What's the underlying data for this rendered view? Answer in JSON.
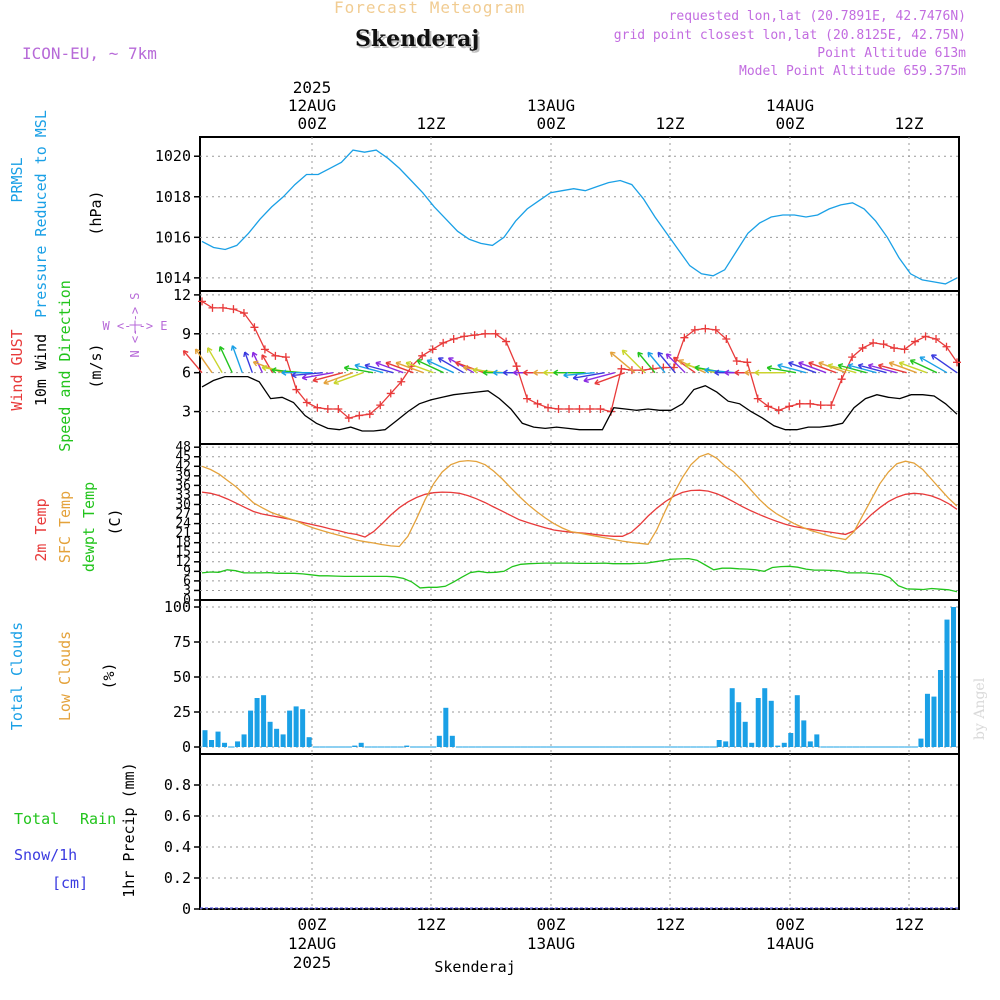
{
  "header": {
    "title": "Forecast Meteogram",
    "location": "Skenderaj",
    "model": "ICON-EU, ~ 7km",
    "requested": "requested lon,lat (20.7891E, 42.7476N)",
    "grid_point": "grid point closest lon,lat (20.8125E, 42.75N)",
    "point_altitude": "Point Altitude 613m",
    "model_altitude": "Model Point Altitude 659.375m",
    "credit": "by Angel"
  },
  "footer": {
    "location": "Skenderaj"
  },
  "time_axis": {
    "top_labels": [
      {
        "lines": [
          "2025",
          "12AUG",
          "00Z"
        ]
      },
      {
        "lines": [
          "12Z"
        ]
      },
      {
        "lines": [
          "13AUG",
          "00Z"
        ]
      },
      {
        "lines": [
          "12Z"
        ]
      },
      {
        "lines": [
          "14AUG",
          "00Z"
        ]
      },
      {
        "lines": [
          "12Z"
        ]
      }
    ],
    "bottom_labels": [
      {
        "lines": [
          "00Z",
          "12AUG",
          "2025"
        ]
      },
      {
        "lines": [
          "12Z"
        ]
      },
      {
        "lines": [
          "00Z",
          "13AUG"
        ]
      },
      {
        "lines": [
          "12Z"
        ]
      },
      {
        "lines": [
          "00Z",
          "14AUG"
        ]
      },
      {
        "lines": [
          "12Z"
        ]
      }
    ]
  },
  "panel_labels": {
    "pressure": [
      {
        "text": "PRMSL",
        "color": "#1aa0e6"
      },
      {
        "text": "Pressure Reduced to MSL",
        "color": "#1aa0e6"
      },
      {
        "text": "(hPa)",
        "color": "#000000"
      }
    ],
    "wind": [
      {
        "text": "Wind GUST",
        "color": "#e83a3a"
      },
      {
        "text": "10m Wind",
        "color": "#000000"
      },
      {
        "text": "Speed and Direction",
        "color": "#22c41c"
      },
      {
        "text": "(m/s)",
        "color": "#000000"
      }
    ],
    "wind_compass": {
      "n": "N",
      "s": "S",
      "w": "W",
      "e": "E",
      "mid": "<-|->",
      "color": "#b76ad8"
    },
    "temp": [
      {
        "text": "2m Temp",
        "color": "#e83a3a"
      },
      {
        "text": "SFC Temp",
        "color": "#e4a23b"
      },
      {
        "text": "dewpt Temp",
        "color": "#22c41c"
      },
      {
        "text": "(C)",
        "color": "#000000"
      }
    ],
    "clouds": [
      {
        "text": "Total Clouds",
        "color": "#1aa0e6"
      },
      {
        "text": "Low Clouds",
        "color": "#e4a23b"
      },
      {
        "text": "(%)",
        "color": "#000000"
      }
    ],
    "precip": {
      "rain": "Total Rain",
      "snow": "Snow/1h",
      "cm": "[cm]",
      "axis": "1hr Precip (mm)",
      "rain_color": "#22c41c",
      "snow_color": "#3a3ae0"
    }
  },
  "chart_data": [
    {
      "type": "line",
      "id": "pressure",
      "series": [
        {
          "name": "PRMSL",
          "color": "#1aa0e6",
          "values": [
            1015.8,
            1015.5,
            1015.4,
            1015.6,
            1016.2,
            1016.9,
            1017.5,
            1018.0,
            1018.6,
            1019.1,
            1019.1,
            1019.4,
            1019.7,
            1020.3,
            1020.2,
            1020.3,
            1019.9,
            1019.4,
            1018.8,
            1018.2,
            1017.5,
            1016.9,
            1016.3,
            1015.9,
            1015.7,
            1015.6,
            1016.0,
            1016.8,
            1017.4,
            1017.8,
            1018.2,
            1018.3,
            1018.4,
            1018.3,
            1018.5,
            1018.7,
            1018.8,
            1018.6,
            1017.9,
            1017.0,
            1016.2,
            1015.4,
            1014.6,
            1014.2,
            1014.1,
            1014.4,
            1015.3,
            1016.2,
            1016.7,
            1017.0,
            1017.1,
            1017.1,
            1017.0,
            1017.1,
            1017.4,
            1017.6,
            1017.7,
            1017.4,
            1016.8,
            1016.0,
            1015.0,
            1014.2,
            1013.9,
            1013.8,
            1013.7,
            1014.0
          ]
        }
      ],
      "ylim": [
        1013.5,
        1020.8
      ],
      "yticks": [
        1014,
        1016,
        1018,
        1020
      ],
      "grid": true
    },
    {
      "type": "line",
      "id": "wind",
      "series": [
        {
          "name": "Wind GUST",
          "color": "#e83a3a",
          "markers": "+",
          "values": [
            11.5,
            11.0,
            11.0,
            10.9,
            10.6,
            9.5,
            7.8,
            7.3,
            7.2,
            4.7,
            3.7,
            3.3,
            3.2,
            3.2,
            2.5,
            2.7,
            2.8,
            3.5,
            4.4,
            5.3,
            6.5,
            7.3,
            7.8,
            8.3,
            8.6,
            8.8,
            8.9,
            9.0,
            9.0,
            8.4,
            6.5,
            4.0,
            3.6,
            3.3,
            3.2,
            3.2,
            3.2,
            3.2,
            3.2,
            3.0,
            6.3,
            6.2,
            6.2,
            6.3,
            6.4,
            6.4,
            8.7,
            9.3,
            9.4,
            9.3,
            8.6,
            6.9,
            6.8,
            4.0,
            3.4,
            3.1,
            3.4,
            3.6,
            3.6,
            3.5,
            3.5,
            5.5,
            7.2,
            7.9,
            8.3,
            8.2,
            7.9,
            7.8,
            8.4,
            8.8,
            8.6,
            8.0,
            6.8
          ]
        },
        {
          "name": "10m Wind",
          "color": "#000000",
          "values": [
            4.9,
            5.4,
            5.7,
            5.7,
            5.7,
            5.3,
            4.0,
            4.1,
            3.7,
            2.7,
            2.1,
            1.7,
            1.6,
            1.8,
            1.5,
            1.5,
            1.6,
            2.3,
            3.0,
            3.6,
            3.9,
            4.1,
            4.3,
            4.4,
            4.5,
            4.6,
            4.0,
            3.2,
            2.1,
            1.8,
            1.7,
            1.8,
            1.7,
            1.6,
            1.6,
            1.6,
            3.3,
            3.2,
            3.1,
            3.2,
            3.1,
            3.1,
            3.6,
            4.7,
            5.0,
            4.5,
            3.8,
            3.6,
            3.0,
            2.5,
            1.9,
            1.6,
            1.6,
            1.8,
            1.8,
            1.9,
            2.1,
            3.3,
            4.0,
            4.3,
            4.1,
            4.0,
            4.3,
            4.3,
            4.2,
            3.6,
            2.8
          ]
        }
      ],
      "wind_barbs": {
        "speeds": [
          5.5,
          5.5,
          5.5,
          5.5,
          5.5,
          4.0,
          4.1,
          3.7,
          6.0,
          6.0,
          6.0,
          6.0,
          6.0,
          6.0,
          6.0,
          6.0,
          6.0,
          5.6,
          5.6,
          5.6,
          5.6,
          5.6,
          5.6,
          5.6,
          5.6,
          5.6,
          5.6,
          5.6,
          5.8,
          6.0,
          6.0,
          6.0,
          6.0,
          6.0,
          6.0,
          6.0,
          6.0,
          6.0,
          6.0,
          6.0,
          6.2,
          6.2,
          6.2,
          6.2,
          6.2,
          5.0,
          5.0,
          5.0,
          5.0,
          5.0,
          5.6,
          6.0,
          6.0,
          6.0,
          6.0,
          6.0,
          6.0,
          6.0,
          6.0,
          5.6,
          5.6,
          5.6,
          5.6,
          5.6,
          5.6,
          5.6,
          5.6,
          5.6,
          5.6,
          5.6,
          5.6,
          5.6,
          5.6,
          5.6,
          6.0,
          6.0
        ],
        "dirs": [
          220,
          215,
          210,
          205,
          200,
          200,
          205,
          210,
          250,
          260,
          265,
          270,
          275,
          280,
          285,
          290,
          290,
          260,
          255,
          255,
          250,
          250,
          250,
          250,
          245,
          245,
          240,
          240,
          250,
          260,
          265,
          270,
          270,
          270,
          270,
          270,
          270,
          270,
          270,
          275,
          280,
          285,
          290,
          230,
          225,
          220,
          220,
          220,
          225,
          235,
          245,
          255,
          260,
          265,
          270,
          270,
          270,
          270,
          270,
          260,
          255,
          250,
          250,
          250,
          250,
          255,
          255,
          255,
          255,
          255,
          255,
          250,
          250,
          245,
          240,
          235
        ]
      },
      "ylim": [
        0.5,
        12.3
      ],
      "yticks": [
        3,
        6,
        9,
        12
      ],
      "grid": true
    },
    {
      "type": "line",
      "id": "temperature",
      "series": [
        {
          "name": "2m Temp",
          "color": "#e83a3a",
          "values": [
            33.9,
            33.5,
            32.8,
            31.7,
            30.4,
            29.1,
            27.8,
            27.0,
            26.5,
            26.0,
            25.5,
            24.8,
            24.2,
            23.6,
            23.0,
            22.3,
            21.7,
            21.0,
            20.6,
            19.8,
            21.5,
            24.0,
            26.7,
            29.0,
            30.8,
            32.2,
            33.2,
            33.7,
            33.9,
            33.8,
            33.5,
            32.8,
            31.8,
            30.6,
            29.2,
            27.9,
            26.5,
            25.2,
            24.3,
            23.5,
            22.7,
            22.0,
            21.6,
            21.3,
            21.1,
            20.9,
            20.5,
            20.2,
            20.0,
            20.0,
            21.2,
            23.6,
            26.4,
            28.8,
            30.9,
            32.6,
            33.8,
            34.4,
            34.5,
            34.2,
            33.4,
            32.2,
            30.8,
            29.3,
            28.0,
            26.8,
            25.7,
            24.7,
            23.8,
            23.1,
            22.6,
            22.2,
            21.8,
            21.4,
            21.0,
            20.6,
            21.7,
            24.1,
            26.8,
            29.0,
            30.9,
            32.3,
            33.2,
            33.5,
            33.3,
            32.7,
            31.7,
            30.3,
            28.5
          ]
        },
        {
          "name": "SFC Temp",
          "color": "#e4a23b",
          "values": [
            42.0,
            41.0,
            39.5,
            37.5,
            35.5,
            33.0,
            30.5,
            29.0,
            27.6,
            26.6,
            25.7,
            24.8,
            23.6,
            22.6,
            21.8,
            21.0,
            20.3,
            19.6,
            18.8,
            18.3,
            17.9,
            17.4,
            17.0,
            16.8,
            20.0,
            25.5,
            31.5,
            36.5,
            40.2,
            42.5,
            43.5,
            43.8,
            43.5,
            42.5,
            40.5,
            38.0,
            35.2,
            32.5,
            30.0,
            27.8,
            25.8,
            24.0,
            22.6,
            21.5,
            21.0,
            20.5,
            20.0,
            19.5,
            19.0,
            18.5,
            18.1,
            17.8,
            17.5,
            22.0,
            28.0,
            33.5,
            38.5,
            42.5,
            45.0,
            46.0,
            44.5,
            42.0,
            40.2,
            37.5,
            34.5,
            31.5,
            29.0,
            27.0,
            25.5,
            24.0,
            22.8,
            21.8,
            21.0,
            20.2,
            19.5,
            19.0,
            21.5,
            26.5,
            31.5,
            36.5,
            40.2,
            42.8,
            43.6,
            43.0,
            41.0,
            38.0,
            35.0,
            32.0,
            29.5
          ]
        },
        {
          "name": "dewpt Temp",
          "color": "#22c41c",
          "values": [
            8.5,
            8.8,
            8.7,
            9.5,
            9.2,
            8.5,
            8.5,
            8.5,
            8.6,
            8.4,
            8.4,
            8.4,
            8.2,
            7.9,
            7.6,
            7.6,
            7.5,
            7.4,
            7.4,
            7.4,
            7.4,
            7.4,
            7.4,
            7.3,
            6.8,
            5.7,
            3.8,
            4.0,
            4.0,
            4.3,
            5.7,
            7.2,
            8.6,
            9.0,
            8.6,
            8.7,
            9.0,
            10.5,
            11.2,
            11.4,
            11.5,
            11.6,
            11.6,
            11.6,
            11.6,
            11.5,
            11.5,
            11.5,
            11.6,
            11.4,
            11.4,
            11.4,
            11.5,
            11.6,
            12.0,
            12.4,
            12.8,
            12.9,
            13.0,
            12.5,
            11.0,
            9.5,
            10.0,
            10.0,
            9.8,
            9.7,
            9.5,
            9.0,
            10.2,
            10.5,
            10.6,
            10.3,
            9.7,
            9.4,
            9.4,
            9.3,
            9.1,
            8.5,
            8.5,
            8.5,
            8.3,
            8.0,
            7.0,
            4.5,
            3.5,
            3.4,
            3.3,
            3.6,
            3.4,
            3.2,
            2.6
          ]
        }
      ],
      "ylim": [
        0,
        49
      ],
      "yticks": [
        0,
        3,
        6,
        9,
        12,
        15,
        18,
        21,
        24,
        27,
        30,
        33,
        36,
        39,
        42,
        45,
        48
      ],
      "grid": true
    },
    {
      "type": "bar",
      "id": "clouds",
      "series": [
        {
          "name": "Total Clouds",
          "color": "#1aa0e6",
          "values": [
            12,
            5,
            11,
            3,
            0,
            4,
            9,
            26,
            35,
            37,
            18,
            13,
            9,
            26,
            29,
            27,
            7,
            0,
            0,
            0,
            0,
            0,
            0,
            1,
            3,
            0,
            0,
            0,
            0,
            0,
            0,
            1,
            0,
            0,
            0,
            0,
            8,
            28,
            8,
            0,
            0,
            0,
            0,
            0,
            0,
            0,
            0,
            0,
            0,
            0,
            0,
            0,
            0,
            0,
            0,
            0,
            0,
            0,
            0,
            0,
            0,
            0,
            0,
            0,
            0,
            0,
            0,
            0,
            0,
            0,
            0,
            0,
            0,
            0,
            0,
            0,
            0,
            0,
            0,
            5,
            4,
            42,
            32,
            18,
            3,
            35,
            42,
            33,
            1,
            3,
            10,
            37,
            19,
            4,
            9,
            0,
            0,
            0,
            0,
            0,
            0,
            0,
            0,
            0,
            0,
            0,
            0,
            0,
            0,
            0,
            6,
            38,
            36,
            55,
            91,
            100
          ]
        },
        {
          "name": "Low Clouds",
          "color": "#e4a23b",
          "values": []
        }
      ],
      "ylim": [
        -5,
        105
      ],
      "yticks": [
        0,
        25,
        50,
        75,
        100
      ],
      "grid": true
    },
    {
      "type": "bar",
      "id": "precipitation",
      "series": [
        {
          "name": "Total Rain",
          "color": "#22c41c",
          "values": []
        },
        {
          "name": "Snow/1h",
          "color": "#3a3ae0",
          "values": []
        }
      ],
      "ylim": [
        0,
        1.0
      ],
      "yticks": [
        0,
        0.2,
        0.4,
        0.6,
        0.8
      ],
      "grid": true
    }
  ]
}
